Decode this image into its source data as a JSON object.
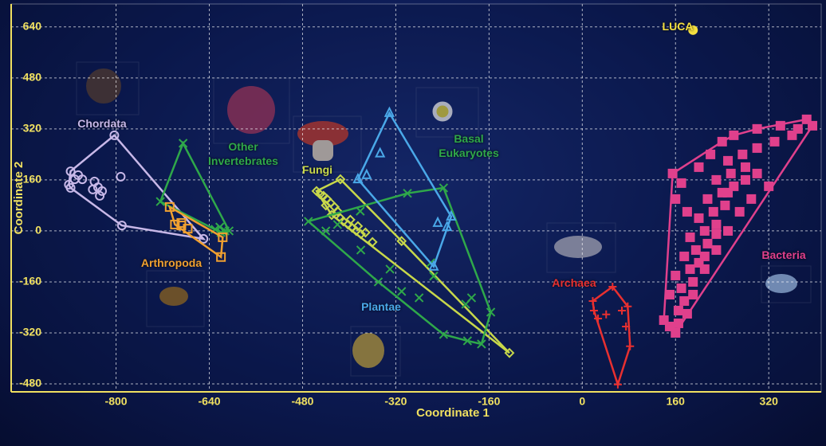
{
  "chart_data": {
    "type": "scatter",
    "x_label": "Coordinate 1",
    "y_label": "Coordinate 2",
    "xlim": [
      -980,
      410
    ],
    "ylim": [
      -505,
      712
    ],
    "xticks": [
      -800,
      -640,
      -480,
      -320,
      -160,
      0,
      160,
      320
    ],
    "yticks": [
      640,
      480,
      320,
      160,
      0,
      -160,
      -320,
      -480
    ],
    "grid": true,
    "series": [
      {
        "name": "Chordata",
        "color": "#c8b8e8",
        "marker": "circle",
        "points": [
          [
            -878,
            187
          ],
          [
            -871,
            162
          ],
          [
            -865,
            175
          ],
          [
            -881,
            145
          ],
          [
            -878,
            135
          ],
          [
            -858,
            162
          ],
          [
            -837,
            155
          ],
          [
            -831,
            137
          ],
          [
            -840,
            130
          ],
          [
            -824,
            125
          ],
          [
            -828,
            110
          ],
          [
            -792,
            170
          ],
          [
            -803,
            300
          ],
          [
            -790,
            17
          ],
          [
            -650,
            -25
          ]
        ]
      },
      {
        "name": "Other Invertebrates",
        "color": "#2fa84a",
        "marker": "x",
        "points": [
          [
            -685,
            275
          ],
          [
            -724,
            92
          ],
          [
            -622,
            12
          ],
          [
            -613,
            0
          ],
          [
            -620,
            -5
          ],
          [
            -606,
            0
          ],
          [
            -630,
            5
          ]
        ]
      },
      {
        "name": "Arthropoda",
        "color": "#f0a030",
        "marker": "square",
        "points": [
          [
            -708,
            75
          ],
          [
            -699,
            20
          ],
          [
            -688,
            17
          ],
          [
            -677,
            7
          ],
          [
            -617,
            -20
          ],
          [
            -620,
            -82
          ],
          [
            -688,
            25
          ]
        ]
      },
      {
        "name": "Fungi",
        "color": "#c8d84a",
        "marker": "diamond",
        "points": [
          [
            -456,
            125
          ],
          [
            -450,
            115
          ],
          [
            -444,
            110
          ],
          [
            -438,
            100
          ],
          [
            -432,
            88
          ],
          [
            -425,
            75
          ],
          [
            -420,
            62
          ],
          [
            -440,
            80
          ],
          [
            -430,
            50
          ],
          [
            -415,
            40
          ],
          [
            -410,
            30
          ],
          [
            -402,
            20
          ],
          [
            -395,
            10
          ],
          [
            -388,
            0
          ],
          [
            -380,
            -10
          ],
          [
            -398,
            35
          ],
          [
            -385,
            15
          ],
          [
            -372,
            -5
          ],
          [
            -415,
            162
          ],
          [
            -360,
            -35
          ],
          [
            -310,
            -32
          ],
          [
            -125,
            -383
          ]
        ]
      },
      {
        "name": "Basal Eukaryotes",
        "color": "#2fa84a",
        "marker": "x",
        "points": [
          [
            -470,
            30
          ],
          [
            -238,
            135
          ],
          [
            -157,
            -255
          ],
          [
            -173,
            -355
          ],
          [
            -197,
            -345
          ],
          [
            -238,
            -325
          ],
          [
            -300,
            118
          ],
          [
            -381,
            62
          ],
          [
            -255,
            -142
          ],
          [
            -260,
            -100
          ],
          [
            -330,
            -120
          ],
          [
            -350,
            -160
          ],
          [
            -310,
            -190
          ],
          [
            -280,
            -210
          ],
          [
            -200,
            -230
          ],
          [
            -190,
            -210
          ],
          [
            -420,
            20
          ],
          [
            -440,
            0
          ],
          [
            -380,
            -60
          ]
        ]
      },
      {
        "name": "Plantae",
        "color": "#4aa8e8",
        "marker": "triangle",
        "points": [
          [
            -331,
            370
          ],
          [
            -347,
            243
          ],
          [
            -370,
            175
          ],
          [
            -385,
            162
          ],
          [
            -248,
            25
          ],
          [
            -225,
            45
          ],
          [
            -232,
            12
          ],
          [
            -255,
            -112
          ]
        ]
      },
      {
        "name": "Archaea",
        "color": "#e83030",
        "marker": "plus",
        "points": [
          [
            52,
            -175
          ],
          [
            18,
            -220
          ],
          [
            27,
            -275
          ],
          [
            75,
            -300
          ],
          [
            61,
            -482
          ],
          [
            82,
            -362
          ],
          [
            41,
            -262
          ],
          [
            68,
            -250
          ],
          [
            78,
            -237
          ],
          [
            20,
            -250
          ]
        ]
      },
      {
        "name": "Bacteria",
        "color": "#e0408c",
        "marker": "square",
        "points": [
          [
            160,
            -320
          ],
          [
            150,
            -300
          ],
          [
            140,
            -280
          ],
          [
            165,
            -250
          ],
          [
            175,
            -220
          ],
          [
            150,
            -200
          ],
          [
            170,
            -180
          ],
          [
            190,
            -160
          ],
          [
            160,
            -140
          ],
          [
            185,
            -120
          ],
          [
            200,
            -100
          ],
          [
            175,
            -80
          ],
          [
            195,
            -60
          ],
          [
            215,
            -40
          ],
          [
            185,
            -20
          ],
          [
            210,
            0
          ],
          [
            230,
            20
          ],
          [
            200,
            40
          ],
          [
            225,
            60
          ],
          [
            245,
            80
          ],
          [
            215,
            100
          ],
          [
            240,
            120
          ],
          [
            260,
            140
          ],
          [
            230,
            160
          ],
          [
            255,
            180
          ],
          [
            280,
            200
          ],
          [
            250,
            220
          ],
          [
            275,
            240
          ],
          [
            300,
            260
          ],
          [
            330,
            280
          ],
          [
            360,
            300
          ],
          [
            385,
            350
          ],
          [
            395,
            330
          ],
          [
            370,
            320
          ],
          [
            320,
            140
          ],
          [
            290,
            100
          ],
          [
            270,
            60
          ],
          [
            250,
            0
          ],
          [
            230,
            -60
          ],
          [
            210,
            -120
          ],
          [
            190,
            -200
          ],
          [
            155,
            180
          ],
          [
            170,
            150
          ],
          [
            160,
            100
          ],
          [
            180,
            60
          ],
          [
            200,
            200
          ],
          [
            220,
            240
          ],
          [
            240,
            280
          ],
          [
            260,
            300
          ],
          [
            300,
            320
          ],
          [
            340,
            330
          ],
          [
            280,
            160
          ],
          [
            300,
            180
          ],
          [
            250,
            120
          ],
          [
            230,
            -10
          ],
          [
            210,
            -80
          ],
          [
            180,
            -260
          ],
          [
            165,
            -290
          ]
        ]
      },
      {
        "name": "LUCA",
        "color": "#f5e040",
        "marker": "dot",
        "points": [
          [
            190,
            630
          ]
        ]
      }
    ]
  }
}
